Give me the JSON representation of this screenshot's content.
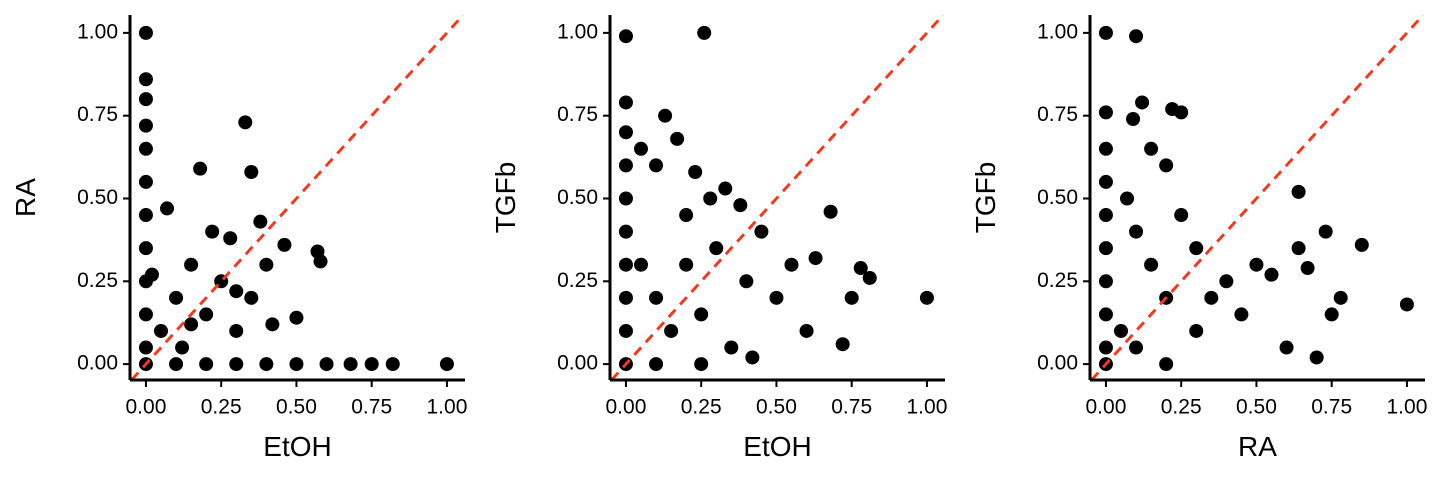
{
  "chart_data": [
    {
      "type": "scatter",
      "x_label": "EtOH",
      "y_label": "RA",
      "color": "#000000",
      "diagonal_color": "#f03c1e",
      "xlim": [
        -0.053,
        1.06
      ],
      "ylim": [
        -0.048,
        1.054
      ],
      "xticks": [
        {
          "value": 0,
          "label": "0.00"
        },
        {
          "value": 0.25,
          "label": "0.25"
        },
        {
          "value": 0.5,
          "label": "0.50"
        },
        {
          "value": 0.75,
          "label": "0.75"
        },
        {
          "value": 1,
          "label": "1.00"
        }
      ],
      "yticks": [
        {
          "value": 0,
          "label": "0.00"
        },
        {
          "value": 0.25,
          "label": "0.25"
        },
        {
          "value": 0.5,
          "label": "0.50"
        },
        {
          "value": 0.75,
          "label": "0.75"
        },
        {
          "value": 1,
          "label": "1.00"
        }
      ],
      "x": [
        0,
        0,
        0,
        0,
        0,
        0,
        0,
        0,
        0,
        0,
        0,
        0,
        0.02,
        0.05,
        0.07,
        0.1,
        0.12,
        0.15,
        0.18,
        0.2,
        0.22,
        0.25,
        0.28,
        0.3,
        0.33,
        0.35,
        0.35,
        0.38,
        0.4,
        0.42,
        0.46,
        0.5,
        0.57,
        0.58,
        0.1,
        0.2,
        0.3,
        0.4,
        0.5,
        0.6,
        0.68,
        0.75,
        0.82,
        1.0,
        0.3,
        0.15
      ],
      "values": [
        1.0,
        0.86,
        0.8,
        0.72,
        0.65,
        0.55,
        0.45,
        0.35,
        0.25,
        0.15,
        0.05,
        0,
        0.27,
        0.1,
        0.47,
        0.2,
        0.05,
        0.3,
        0.59,
        0.15,
        0.4,
        0.25,
        0.38,
        0.1,
        0.73,
        0.58,
        0.2,
        0.43,
        0.3,
        0.12,
        0.36,
        0.14,
        0.34,
        0.31,
        0,
        0,
        0,
        0,
        0,
        0,
        0,
        0,
        0,
        0,
        0.22,
        0.12
      ]
    },
    {
      "type": "scatter",
      "x_label": "EtOH",
      "y_label": "TGFb",
      "color": "#000000",
      "diagonal_color": "#f03c1e",
      "xlim": [
        -0.053,
        1.06
      ],
      "ylim": [
        -0.048,
        1.054
      ],
      "xticks": [
        {
          "value": 0,
          "label": "0.00"
        },
        {
          "value": 0.25,
          "label": "0.25"
        },
        {
          "value": 0.5,
          "label": "0.50"
        },
        {
          "value": 0.75,
          "label": "0.75"
        },
        {
          "value": 1,
          "label": "1.00"
        }
      ],
      "yticks": [
        {
          "value": 0,
          "label": "0.00"
        },
        {
          "value": 0.25,
          "label": "0.25"
        },
        {
          "value": 0.5,
          "label": "0.50"
        },
        {
          "value": 0.75,
          "label": "0.75"
        },
        {
          "value": 1,
          "label": "1.00"
        }
      ],
      "x": [
        0,
        0.26,
        0,
        0,
        0,
        0,
        0,
        0,
        0,
        0,
        0,
        0.05,
        0.1,
        0.13,
        0.17,
        0.2,
        0.23,
        0.28,
        0.05,
        0.1,
        0.15,
        0.2,
        0.25,
        0.3,
        0.35,
        0.4,
        0.45,
        0.5,
        0.55,
        0.6,
        0.63,
        0.68,
        0.72,
        0.75,
        0.78,
        0.81,
        1.0,
        0.33,
        0.38,
        0.42,
        0.1,
        0.25
      ],
      "values": [
        0.99,
        1.0,
        0.79,
        0.7,
        0.6,
        0.5,
        0.4,
        0.3,
        0.2,
        0.1,
        0,
        0.65,
        0.6,
        0.75,
        0.68,
        0.45,
        0.58,
        0.5,
        0.3,
        0.2,
        0.1,
        0.3,
        0.15,
        0.35,
        0.05,
        0.25,
        0.4,
        0.2,
        0.3,
        0.1,
        0.32,
        0.46,
        0.06,
        0.2,
        0.29,
        0.26,
        0.2,
        0.53,
        0.48,
        0.02,
        0,
        0
      ]
    },
    {
      "type": "scatter",
      "x_label": "RA",
      "y_label": "TGFb",
      "color": "#000000",
      "diagonal_color": "#f03c1e",
      "xlim": [
        -0.053,
        1.06
      ],
      "ylim": [
        -0.048,
        1.054
      ],
      "xticks": [
        {
          "value": 0,
          "label": "0.00"
        },
        {
          "value": 0.25,
          "label": "0.25"
        },
        {
          "value": 0.5,
          "label": "0.50"
        },
        {
          "value": 0.75,
          "label": "0.75"
        },
        {
          "value": 1,
          "label": "1.00"
        }
      ],
      "yticks": [
        {
          "value": 0,
          "label": "0.00"
        },
        {
          "value": 0.25,
          "label": "0.25"
        },
        {
          "value": 0.5,
          "label": "0.50"
        },
        {
          "value": 0.75,
          "label": "0.75"
        },
        {
          "value": 1,
          "label": "1.00"
        }
      ],
      "x": [
        0,
        0.1,
        0,
        0,
        0,
        0,
        0,
        0,
        0,
        0,
        0,
        0.09,
        0.12,
        0.22,
        0.25,
        0.15,
        0.2,
        0.07,
        0.1,
        0.15,
        0.2,
        0.25,
        0.3,
        0.05,
        0.1,
        0.3,
        0.35,
        0.4,
        0.45,
        0.5,
        0.55,
        0.6,
        0.64,
        0.64,
        0.67,
        0.73,
        0.75,
        0.78,
        0.85,
        1.0,
        0.7,
        0.2
      ],
      "values": [
        1.0,
        0.99,
        0.76,
        0.65,
        0.55,
        0.45,
        0.35,
        0.25,
        0.15,
        0.05,
        0,
        0.74,
        0.79,
        0.77,
        0.76,
        0.65,
        0.6,
        0.5,
        0.4,
        0.3,
        0.2,
        0.45,
        0.35,
        0.1,
        0.05,
        0.1,
        0.2,
        0.25,
        0.15,
        0.3,
        0.27,
        0.05,
        0.52,
        0.35,
        0.29,
        0.4,
        0.15,
        0.2,
        0.36,
        0.18,
        0.02,
        0
      ]
    }
  ]
}
